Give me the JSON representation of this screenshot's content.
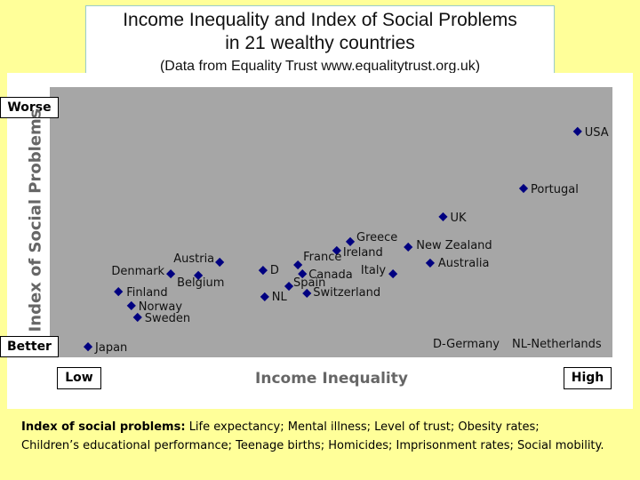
{
  "header": {
    "title_line1": "Income Inequality and Index of Social Problems",
    "title_line2": "in 21 wealthy countries",
    "subtitle": "(Data from Equality Trust  www.equalitytrust.org.uk)"
  },
  "labels": {
    "worse": "Worse",
    "better": "Better",
    "low": "Low",
    "high": "High",
    "legend_d": "D-Germany",
    "legend_nl": "NL-Netherlands"
  },
  "footnote": {
    "heading": "Index of social problems:",
    "line1": "Life expectancy; Mental illness; Level of trust; Obesity rates;",
    "line2": "Children’s educational performance; Teenage births; Homicides; Imprisonment rates; Social mobility."
  },
  "colors": {
    "marker": "#000080",
    "plot_bg": "#a6a6a6",
    "page_bg": "#ffff99"
  },
  "chart_data": {
    "type": "scatter",
    "title": "Income Inequality and Index of Social Problems",
    "xlabel": "Income Inequality",
    "ylabel": "Index of Social Problems",
    "xlim": [
      0,
      100
    ],
    "ylim": [
      0,
      100
    ],
    "grid": false,
    "points": [
      {
        "label": "USA",
        "x": 93.8,
        "y": 83.6
      },
      {
        "label": "Portugal",
        "x": 84.2,
        "y": 62.5
      },
      {
        "label": "UK",
        "x": 69.9,
        "y": 52.0
      },
      {
        "label": "Greece",
        "x": 53.4,
        "y": 42.8
      },
      {
        "label": "Ireland",
        "x": 51.0,
        "y": 39.5
      },
      {
        "label": "New Zealand",
        "x": 63.7,
        "y": 40.8
      },
      {
        "label": "Australia",
        "x": 67.6,
        "y": 34.9
      },
      {
        "label": "France",
        "x": 44.1,
        "y": 34.2
      },
      {
        "label": "Canada",
        "x": 44.9,
        "y": 30.9
      },
      {
        "label": "Italy",
        "x": 61.0,
        "y": 30.9
      },
      {
        "label": "Spain",
        "x": 42.5,
        "y": 26.3
      },
      {
        "label": "Switzerland",
        "x": 45.7,
        "y": 23.7
      },
      {
        "label": "D",
        "x": 37.9,
        "y": 32.2
      },
      {
        "label": "NL",
        "x": 38.2,
        "y": 22.4
      },
      {
        "label": "Austria",
        "x": 30.2,
        "y": 35.2
      },
      {
        "label": "Denmark",
        "x": 21.5,
        "y": 30.9
      },
      {
        "label": "Belgium",
        "x": 26.4,
        "y": 30.3
      },
      {
        "label": "Finland",
        "x": 12.2,
        "y": 24.3
      },
      {
        "label": "Norway",
        "x": 14.5,
        "y": 19.1
      },
      {
        "label": "Sweden",
        "x": 15.6,
        "y": 14.8
      },
      {
        "label": "Japan",
        "x": 6.8,
        "y": 3.9
      }
    ]
  }
}
